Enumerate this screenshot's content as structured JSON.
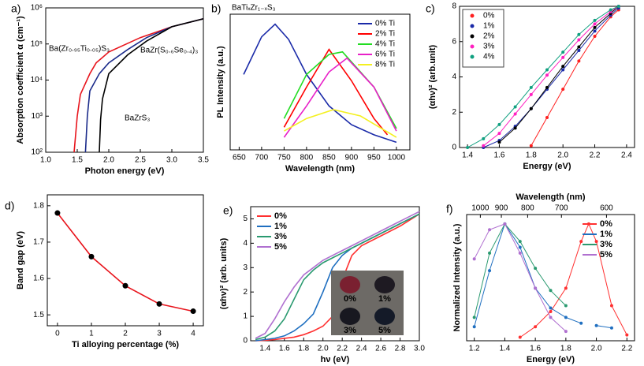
{
  "chart_data": [
    {
      "type": "line",
      "label": "a)",
      "xlabel": "Photon energy (eV)",
      "ylabel": "Absorption coefficient α (cm⁻¹)",
      "xlim": [
        1.0,
        3.5
      ],
      "xticks": [
        {
          "value": 1,
          "label": "1.0"
        },
        1.5,
        {
          "value": 2,
          "label": "2.0"
        },
        2.5,
        {
          "value": 3,
          "label": "3.0"
        },
        3.5
      ],
      "ylim": [
        100,
        1000000
      ],
      "ylog": true,
      "yticks": [
        {
          "value": 100,
          "label": "10²"
        },
        {
          "value": 1000,
          "label": "10³"
        },
        {
          "value": 10000,
          "label": "10⁴"
        },
        {
          "value": 100000,
          "label": "10⁵"
        },
        {
          "value": 1000000,
          "label": "10⁶"
        }
      ],
      "annotations": [
        "Ba(Zr₀.₉₅Ti₀.₀₅)S₃",
        "BaZr(S₀.₆Se₀.₄)₃",
        "BaZrS₃"
      ],
      "series": [
        {
          "name": "Ba(Zr₀.₉₅Ti₀.₀₅)S₃",
          "color": "#e8141c",
          "x": [
            1.45,
            1.5,
            1.55,
            1.7,
            1.8,
            2.0,
            2.5,
            3.0,
            3.5
          ],
          "values": [
            100,
            1000,
            4000,
            15000,
            30000,
            60000,
            150000,
            300000,
            500000
          ]
        },
        {
          "name": "BaZr(S₀.₆Se₀.₄)₃",
          "color": "#1a2a8a",
          "x": [
            1.63,
            1.66,
            1.7,
            1.85,
            2.0,
            2.3,
            2.6,
            3.0,
            3.5
          ],
          "values": [
            100,
            1000,
            5000,
            15000,
            30000,
            70000,
            150000,
            300000,
            500000
          ]
        },
        {
          "name": "BaZrS₃",
          "color": "#000000",
          "x": [
            1.85,
            1.87,
            1.9,
            2.0,
            2.3,
            2.6,
            3.0,
            3.5
          ],
          "values": [
            100,
            800,
            3000,
            15000,
            50000,
            120000,
            300000,
            500000
          ]
        }
      ]
    },
    {
      "type": "line",
      "label": "b)",
      "xlabel": "Wavelength (nm)",
      "ylabel": "PL Intensity (a.u.)",
      "xlim": [
        630,
        1030
      ],
      "xticks": [
        650,
        700,
        750,
        800,
        850,
        900,
        950,
        1000
      ],
      "ylim": [
        0,
        1.08
      ],
      "annotations": [
        "BaTiₓZr₁₋ₓS₃"
      ],
      "legend": "upper right",
      "series": [
        {
          "name": "0% Ti",
          "color": "#1a2aa8",
          "x": [
            660,
            700,
            730,
            760,
            800,
            850,
            900,
            950,
            1000
          ],
          "values": [
            0.6,
            0.9,
            1.0,
            0.88,
            0.6,
            0.35,
            0.2,
            0.12,
            0.06
          ]
        },
        {
          "name": "2% Ti",
          "color": "#ff0000",
          "x": [
            750,
            800,
            850,
            900,
            950,
            980
          ],
          "values": [
            0.18,
            0.5,
            0.8,
            0.55,
            0.25,
            0.12
          ]
        },
        {
          "name": "4% Ti",
          "color": "#22dd22",
          "x": [
            750,
            800,
            850,
            880,
            950,
            1000
          ],
          "values": [
            0.25,
            0.6,
            0.76,
            0.78,
            0.5,
            0.17
          ]
        },
        {
          "name": "6% Ti",
          "color": "#e820c8",
          "x": [
            750,
            800,
            850,
            890,
            950,
            1000
          ],
          "values": [
            0.1,
            0.35,
            0.62,
            0.73,
            0.5,
            0.15
          ]
        },
        {
          "name": "8% Ti",
          "color": "#f4f020",
          "x": [
            750,
            800,
            860,
            920,
            1000
          ],
          "values": [
            0.15,
            0.25,
            0.32,
            0.27,
            0.1
          ]
        }
      ]
    },
    {
      "type": "line",
      "label": "c)",
      "xlabel": "Energy (eV)",
      "ylabel": "(αhν)² (arb.unit)",
      "markers": true,
      "legend": "upper left",
      "xlim": [
        1.35,
        2.45
      ],
      "xticks": [
        1.4,
        1.6,
        1.8,
        {
          "value": 2,
          "label": "2.0"
        },
        2.2,
        2.4
      ],
      "ylim": [
        0,
        8
      ],
      "yticks": [
        0,
        2,
        4,
        6,
        8
      ],
      "x": [
        1.4,
        1.5,
        1.6,
        1.7,
        1.8,
        1.9,
        2.0,
        2.1,
        2.2,
        2.3,
        2.35
      ],
      "series": [
        {
          "name": "0%",
          "color": "#ff2020",
          "values": [
            null,
            null,
            null,
            null,
            0.1,
            1.7,
            3.3,
            4.9,
            6.3,
            7.4,
            7.8
          ]
        },
        {
          "name": "1%",
          "color": "#1a2aa8",
          "values": [
            null,
            0,
            0.4,
            1.2,
            2.2,
            3.3,
            4.4,
            5.5,
            6.6,
            7.5,
            7.9
          ]
        },
        {
          "name": "2%",
          "color": "#000000",
          "values": [
            null,
            null,
            0.3,
            1.1,
            2.2,
            3.4,
            4.6,
            5.7,
            6.8,
            7.6,
            8
          ]
        },
        {
          "name": "3%",
          "color": "#ff20c0",
          "values": [
            null,
            0.1,
            0.8,
            1.9,
            3,
            4.1,
            5.1,
            6.1,
            7,
            7.7,
            8
          ]
        },
        {
          "name": "4%",
          "color": "#10a080",
          "values": [
            0,
            0.5,
            1.3,
            2.3,
            3.4,
            4.4,
            5.4,
            6.4,
            7.2,
            7.8,
            8
          ]
        }
      ]
    },
    {
      "type": "line",
      "label": "d)",
      "xlabel": "Ti alloying percentage (%)",
      "ylabel": "Band gap (eV)",
      "markers": true,
      "marker_color": "#000000",
      "xlim": [
        -0.3,
        4.3
      ],
      "xticks": [
        0,
        1,
        2,
        3,
        4
      ],
      "ylim": [
        1.47,
        1.83
      ],
      "yticks": [
        1.5,
        1.6,
        1.7,
        1.8
      ],
      "x": [
        0,
        1,
        2,
        3,
        4
      ],
      "series": [
        {
          "name": "Band gap",
          "color": "#e8141c",
          "values": [
            1.78,
            1.66,
            1.58,
            1.53,
            1.51
          ]
        }
      ]
    },
    {
      "type": "line",
      "label": "e)",
      "xlabel": "hν (eV)",
      "ylabel": "(αhν)² (arb. units)",
      "legend": "upper left",
      "xlim": [
        1.25,
        3.0
      ],
      "xticks": [
        1.4,
        1.6,
        1.8,
        {
          "value": 2,
          "label": "2.0"
        },
        2.2,
        2.4,
        2.6,
        2.8,
        {
          "value": 3,
          "label": "3.0"
        }
      ],
      "ylim": [
        0,
        5.5
      ],
      "yticks": [
        0,
        1,
        2,
        3,
        4,
        5
      ],
      "inset_labels": [
        "0%",
        "1%",
        "3%",
        "5%"
      ],
      "x": [
        1.3,
        1.4,
        1.5,
        1.6,
        1.7,
        1.8,
        1.9,
        2.0,
        2.1,
        2.2,
        2.3,
        2.4,
        2.6,
        2.8,
        3.0
      ],
      "series": [
        {
          "name": "0%",
          "color": "#ff3030",
          "values": [
            0,
            0.02,
            0.05,
            0.1,
            0.15,
            0.25,
            0.4,
            0.6,
            1,
            2.5,
            3.5,
            3.9,
            4.3,
            4.7,
            5.2
          ]
        },
        {
          "name": "1%",
          "color": "#1f6fc0",
          "values": [
            0,
            0.05,
            0.1,
            0.2,
            0.4,
            0.7,
            1.1,
            2,
            3,
            3.5,
            3.8,
            4.0,
            4.4,
            4.8,
            5.2
          ]
        },
        {
          "name": "3%",
          "color": "#2a9a70",
          "values": [
            0.05,
            0.15,
            0.4,
            0.9,
            1.7,
            2.5,
            2.9,
            3.2,
            3.4,
            3.6,
            3.8,
            4.0,
            4.4,
            4.8,
            5.2
          ]
        },
        {
          "name": "5%",
          "color": "#b070d0",
          "values": [
            0.1,
            0.3,
            0.9,
            1.6,
            2.2,
            2.7,
            3.0,
            3.3,
            3.5,
            3.7,
            3.9,
            4.1,
            4.5,
            4.9,
            5.3
          ]
        }
      ]
    },
    {
      "type": "line",
      "label": "f)",
      "xlabel": "Energy (eV)",
      "ylabel": "Normalized Intensity (a.u.)",
      "markers": true,
      "legend": "upper right",
      "xlim": [
        1.15,
        2.25
      ],
      "xticks": [
        1.2,
        1.4,
        1.6,
        1.8,
        {
          "value": 2,
          "label": "2.0"
        },
        2.2
      ],
      "ylim": [
        0,
        1.08
      ],
      "x2label": "Wavelength (nm)",
      "x2lim": [
        1078,
        551
      ],
      "x2scale": "reciprocal",
      "x2ticks": [
        1000,
        900,
        800,
        700,
        600
      ],
      "x": [
        1.2,
        1.3,
        1.4,
        1.5,
        1.6,
        1.7,
        1.8,
        1.9,
        1.95,
        2.0,
        2.1,
        2.2
      ],
      "series": [
        {
          "name": "0%",
          "color": "#ff3030",
          "values": [
            null,
            null,
            null,
            0.03,
            0.12,
            0.25,
            0.45,
            0.85,
            1.0,
            0.85,
            0.3,
            0.05
          ]
        },
        {
          "name": "1%",
          "color": "#1f6fc0",
          "values": [
            0.12,
            0.6,
            1.0,
            0.8,
            0.45,
            0.28,
            0.2,
            0.15,
            null,
            0.13,
            0.11,
            null
          ]
        },
        {
          "name": "3%",
          "color": "#2a9a70",
          "values": [
            0.2,
            0.75,
            1.0,
            0.85,
            0.62,
            0.43,
            0.3,
            null,
            null,
            null,
            null,
            null
          ]
        },
        {
          "name": "5%",
          "color": "#b070d0",
          "values": [
            0.7,
            0.95,
            1.0,
            0.75,
            0.45,
            0.2,
            0.08,
            null,
            null,
            null,
            null,
            null
          ]
        }
      ]
    }
  ]
}
